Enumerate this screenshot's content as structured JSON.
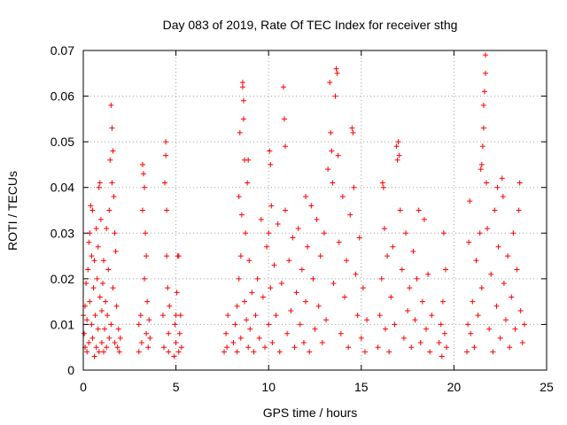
{
  "chart_data": {
    "type": "scatter",
    "title": "Day 083 of 2019, Rate Of TEC Index for receiver sthg",
    "xlabel": "GPS time / hours",
    "ylabel": "ROTI / TECUs",
    "xlim": [
      0,
      25
    ],
    "ylim": [
      0,
      0.07
    ],
    "xticks": [
      0,
      5,
      10,
      15,
      20,
      25
    ],
    "xtick_labels": [
      "0",
      "5",
      "10",
      "15",
      "20",
      "25"
    ],
    "yticks": [
      0,
      0.01,
      0.02,
      0.03,
      0.04,
      0.05,
      0.06,
      0.07
    ],
    "ytick_labels": [
      "0",
      "0.01",
      "0.02",
      "0.03",
      "0.04",
      "0.05",
      "0.06",
      "0.07"
    ],
    "grid": true,
    "marker": "+",
    "color": "#ff0000",
    "series": [
      {
        "name": "ROTI",
        "points": [
          [
            0.0,
            0.012
          ],
          [
            0.05,
            0.008
          ],
          [
            0.1,
            0.005
          ],
          [
            0.1,
            0.014
          ],
          [
            0.15,
            0.019
          ],
          [
            0.2,
            0.004
          ],
          [
            0.2,
            0.011
          ],
          [
            0.25,
            0.022
          ],
          [
            0.3,
            0.006
          ],
          [
            0.3,
            0.028
          ],
          [
            0.35,
            0.03
          ],
          [
            0.35,
            0.015
          ],
          [
            0.4,
            0.036
          ],
          [
            0.45,
            0.01
          ],
          [
            0.45,
            0.025
          ],
          [
            0.5,
            0.035
          ],
          [
            0.5,
            0.007
          ],
          [
            0.55,
            0.018
          ],
          [
            0.6,
            0.003
          ],
          [
            0.6,
            0.024
          ],
          [
            0.65,
            0.012
          ],
          [
            0.7,
            0.031
          ],
          [
            0.7,
            0.005
          ],
          [
            0.75,
            0.02
          ],
          [
            0.8,
            0.009
          ],
          [
            0.8,
            0.027
          ],
          [
            0.85,
            0.04
          ],
          [
            0.85,
            0.004
          ],
          [
            0.9,
            0.041
          ],
          [
            0.9,
            0.016
          ],
          [
            0.95,
            0.033
          ],
          [
            1.0,
            0.006
          ],
          [
            1.0,
            0.013
          ],
          [
            1.05,
            0.019
          ],
          [
            1.1,
            0.004
          ],
          [
            1.1,
            0.024
          ],
          [
            1.15,
            0.009
          ],
          [
            1.2,
            0.015
          ],
          [
            1.25,
            0.005
          ],
          [
            1.25,
            0.031
          ],
          [
            1.3,
            0.012
          ],
          [
            1.35,
            0.022
          ],
          [
            1.4,
            0.007
          ],
          [
            1.4,
            0.035
          ],
          [
            1.45,
            0.046
          ],
          [
            1.5,
            0.058
          ],
          [
            1.5,
            0.01
          ],
          [
            1.55,
            0.053
          ],
          [
            1.55,
            0.041
          ],
          [
            1.6,
            0.048
          ],
          [
            1.6,
            0.018
          ],
          [
            1.65,
            0.038
          ],
          [
            1.7,
            0.03
          ],
          [
            1.7,
            0.006
          ],
          [
            1.75,
            0.026
          ],
          [
            1.8,
            0.014
          ],
          [
            1.85,
            0.005
          ],
          [
            1.9,
            0.009
          ],
          [
            1.95,
            0.004
          ],
          [
            2.0,
            0.007
          ],
          [
            3.0,
            0.01
          ],
          [
            3.0,
            0.004
          ],
          [
            3.1,
            0.012
          ],
          [
            3.15,
            0.006
          ],
          [
            3.2,
            0.035
          ],
          [
            3.2,
            0.045
          ],
          [
            3.25,
            0.043
          ],
          [
            3.3,
            0.04
          ],
          [
            3.3,
            0.02
          ],
          [
            3.35,
            0.03
          ],
          [
            3.4,
            0.008
          ],
          [
            3.4,
            0.025
          ],
          [
            3.45,
            0.015
          ],
          [
            3.5,
            0.005
          ],
          [
            3.55,
            0.011
          ],
          [
            3.6,
            0.007
          ],
          [
            4.3,
            0.012
          ],
          [
            4.35,
            0.005
          ],
          [
            4.4,
            0.041
          ],
          [
            4.45,
            0.05
          ],
          [
            4.45,
            0.047
          ],
          [
            4.5,
            0.035
          ],
          [
            4.5,
            0.025
          ],
          [
            4.55,
            0.018
          ],
          [
            4.6,
            0.008
          ],
          [
            4.6,
            0.004
          ],
          [
            4.65,
            0.014
          ],
          [
            4.9,
            0.003
          ],
          [
            4.95,
            0.01
          ],
          [
            5.0,
            0.006
          ],
          [
            5.0,
            0.012
          ],
          [
            5.05,
            0.017
          ],
          [
            5.1,
            0.025
          ],
          [
            5.15,
            0.025
          ],
          [
            5.15,
            0.004
          ],
          [
            5.2,
            0.008
          ],
          [
            5.25,
            0.012
          ],
          [
            5.3,
            0.005
          ],
          [
            7.6,
            0.004
          ],
          [
            7.7,
            0.008
          ],
          [
            7.75,
            0.005
          ],
          [
            7.8,
            0.012
          ],
          [
            8.1,
            0.006
          ],
          [
            8.2,
            0.01
          ],
          [
            8.3,
            0.004
          ],
          [
            8.3,
            0.014
          ],
          [
            8.4,
            0.02
          ],
          [
            8.4,
            0.038
          ],
          [
            8.45,
            0.052
          ],
          [
            8.5,
            0.007
          ],
          [
            8.5,
            0.025
          ],
          [
            8.55,
            0.034
          ],
          [
            8.6,
            0.063
          ],
          [
            8.6,
            0.062
          ],
          [
            8.65,
            0.059
          ],
          [
            8.65,
            0.055
          ],
          [
            8.7,
            0.046
          ],
          [
            8.7,
            0.015
          ],
          [
            8.75,
            0.03
          ],
          [
            8.8,
            0.011
          ],
          [
            8.85,
            0.041
          ],
          [
            8.9,
            0.046
          ],
          [
            8.9,
            0.005
          ],
          [
            8.95,
            0.024
          ],
          [
            9.0,
            0.009
          ],
          [
            9.1,
            0.017
          ],
          [
            9.2,
            0.004
          ],
          [
            9.3,
            0.012
          ],
          [
            9.4,
            0.02
          ],
          [
            9.5,
            0.007
          ],
          [
            9.6,
            0.033
          ],
          [
            9.7,
            0.016
          ],
          [
            9.8,
            0.005
          ],
          [
            9.9,
            0.027
          ],
          [
            10.0,
            0.03
          ],
          [
            10.0,
            0.01
          ],
          [
            10.05,
            0.048
          ],
          [
            10.1,
            0.045
          ],
          [
            10.1,
            0.018
          ],
          [
            10.15,
            0.036
          ],
          [
            10.2,
            0.006
          ],
          [
            10.3,
            0.023
          ],
          [
            10.4,
            0.012
          ],
          [
            10.5,
            0.032
          ],
          [
            10.6,
            0.004
          ],
          [
            10.7,
            0.019
          ],
          [
            10.8,
            0.062
          ],
          [
            10.85,
            0.055
          ],
          [
            10.9,
            0.049
          ],
          [
            10.9,
            0.035
          ],
          [
            11.0,
            0.008
          ],
          [
            11.1,
            0.024
          ],
          [
            11.2,
            0.013
          ],
          [
            11.3,
            0.029
          ],
          [
            11.4,
            0.005
          ],
          [
            11.5,
            0.017
          ],
          [
            11.6,
            0.031
          ],
          [
            11.7,
            0.01
          ],
          [
            11.8,
            0.022
          ],
          [
            11.9,
            0.006
          ],
          [
            12.0,
            0.038
          ],
          [
            12.0,
            0.015
          ],
          [
            12.1,
            0.027
          ],
          [
            12.2,
            0.004
          ],
          [
            12.3,
            0.036
          ],
          [
            12.4,
            0.02
          ],
          [
            12.5,
            0.009
          ],
          [
            12.6,
            0.033
          ],
          [
            12.7,
            0.014
          ],
          [
            12.8,
            0.025
          ],
          [
            12.9,
            0.006
          ],
          [
            13.0,
            0.03
          ],
          [
            13.1,
            0.011
          ],
          [
            13.2,
            0.044
          ],
          [
            13.3,
            0.063
          ],
          [
            13.35,
            0.052
          ],
          [
            13.4,
            0.048
          ],
          [
            13.45,
            0.041
          ],
          [
            13.5,
            0.019
          ],
          [
            13.6,
            0.06
          ],
          [
            13.65,
            0.066
          ],
          [
            13.7,
            0.065
          ],
          [
            13.75,
            0.047
          ],
          [
            13.8,
            0.028
          ],
          [
            13.9,
            0.008
          ],
          [
            14.0,
            0.038
          ],
          [
            14.1,
            0.016
          ],
          [
            14.2,
            0.024
          ],
          [
            14.3,
            0.005
          ],
          [
            14.4,
            0.034
          ],
          [
            14.5,
            0.053
          ],
          [
            14.55,
            0.052
          ],
          [
            14.6,
            0.04
          ],
          [
            14.7,
            0.021
          ],
          [
            14.8,
            0.012
          ],
          [
            14.9,
            0.029
          ],
          [
            15.0,
            0.007
          ],
          [
            15.1,
            0.018
          ],
          [
            15.2,
            0.004
          ],
          [
            15.3,
            0.011
          ],
          [
            15.9,
            0.005
          ],
          [
            16.0,
            0.012
          ],
          [
            16.1,
            0.02
          ],
          [
            16.15,
            0.041
          ],
          [
            16.2,
            0.04
          ],
          [
            16.25,
            0.031
          ],
          [
            16.3,
            0.009
          ],
          [
            16.4,
            0.025
          ],
          [
            16.5,
            0.004
          ],
          [
            16.6,
            0.016
          ],
          [
            16.7,
            0.027
          ],
          [
            16.8,
            0.01
          ],
          [
            16.9,
            0.049
          ],
          [
            16.95,
            0.046
          ],
          [
            17.0,
            0.05
          ],
          [
            17.05,
            0.047
          ],
          [
            17.1,
            0.035
          ],
          [
            17.2,
            0.022
          ],
          [
            17.3,
            0.007
          ],
          [
            17.4,
            0.03
          ],
          [
            17.5,
            0.013
          ],
          [
            17.6,
            0.018
          ],
          [
            17.7,
            0.005
          ],
          [
            17.8,
            0.026
          ],
          [
            17.9,
            0.011
          ],
          [
            18.0,
            0.02
          ],
          [
            18.1,
            0.035
          ],
          [
            18.2,
            0.006
          ],
          [
            18.3,
            0.015
          ],
          [
            18.4,
            0.033
          ],
          [
            18.5,
            0.009
          ],
          [
            18.6,
            0.021
          ],
          [
            18.7,
            0.004
          ],
          [
            18.8,
            0.012
          ],
          [
            19.2,
            0.006
          ],
          [
            19.3,
            0.01
          ],
          [
            19.35,
            0.003
          ],
          [
            19.4,
            0.015
          ],
          [
            19.45,
            0.03
          ],
          [
            19.5,
            0.008
          ],
          [
            19.55,
            0.022
          ],
          [
            19.6,
            0.005
          ],
          [
            20.7,
            0.004
          ],
          [
            20.75,
            0.01
          ],
          [
            20.8,
            0.028
          ],
          [
            20.85,
            0.037
          ],
          [
            20.9,
            0.008
          ],
          [
            21.0,
            0.015
          ],
          [
            21.1,
            0.005
          ],
          [
            21.2,
            0.024
          ],
          [
            21.3,
            0.012
          ],
          [
            21.4,
            0.03
          ],
          [
            21.45,
            0.044
          ],
          [
            21.5,
            0.045
          ],
          [
            21.5,
            0.018
          ],
          [
            21.55,
            0.049
          ],
          [
            21.6,
            0.053
          ],
          [
            21.6,
            0.058
          ],
          [
            21.65,
            0.061
          ],
          [
            21.7,
            0.069
          ],
          [
            21.7,
            0.065
          ],
          [
            21.75,
            0.041
          ],
          [
            21.8,
            0.031
          ],
          [
            21.9,
            0.009
          ],
          [
            22.0,
            0.021
          ],
          [
            22.1,
            0.004
          ],
          [
            22.2,
            0.035
          ],
          [
            22.3,
            0.014
          ],
          [
            22.35,
            0.04
          ],
          [
            22.4,
            0.027
          ],
          [
            22.5,
            0.007
          ],
          [
            22.6,
            0.042
          ],
          [
            22.65,
            0.038
          ],
          [
            22.7,
            0.019
          ],
          [
            22.8,
            0.011
          ],
          [
            22.9,
            0.025
          ],
          [
            23.0,
            0.005
          ],
          [
            23.1,
            0.016
          ],
          [
            23.2,
            0.03
          ],
          [
            23.3,
            0.009
          ],
          [
            23.4,
            0.022
          ],
          [
            23.5,
            0.035
          ],
          [
            23.55,
            0.041
          ],
          [
            23.6,
            0.013
          ],
          [
            23.7,
            0.006
          ],
          [
            23.8,
            0.01
          ]
        ]
      }
    ]
  }
}
